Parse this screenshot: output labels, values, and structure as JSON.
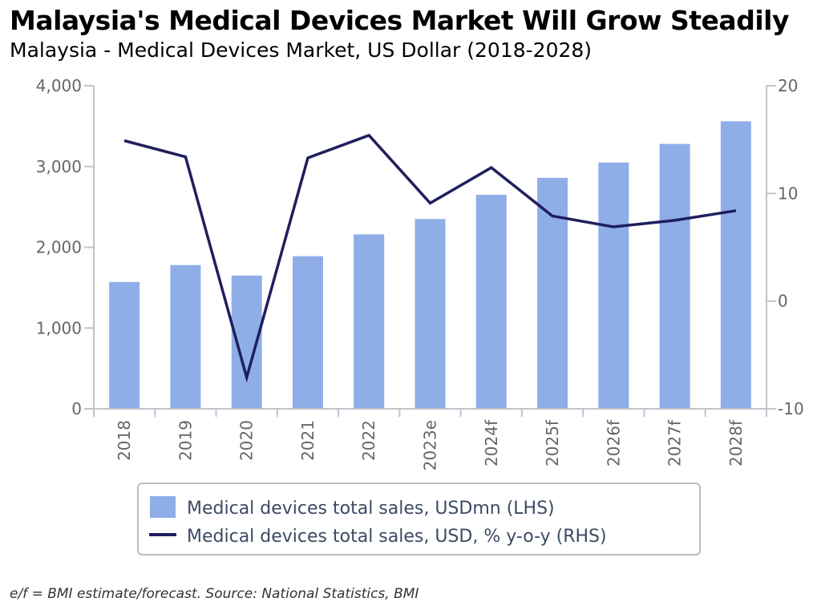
{
  "header": {
    "title": "Malaysia's Medical Devices Market Will Grow Steadily",
    "subtitle": "Malaysia - Medical Devices Market, US Dollar (2018-2028)"
  },
  "footnote": "e/f = BMI estimate/forecast. Source: National Statistics, BMI",
  "colors": {
    "bar": "#8faee8",
    "line": "#1f1f5e",
    "axis": "#c0c4cc",
    "tick_text": "#666666",
    "legend_text": "#3b4a63"
  },
  "chart_data": {
    "type": "bar",
    "title": "Malaysia's Medical Devices Market Will Grow Steadily",
    "subtitle": "Malaysia - Medical Devices Market, US Dollar (2018-2028)",
    "categories": [
      "2018",
      "2019",
      "2020",
      "2021",
      "2022",
      "2023e",
      "2024f",
      "2025f",
      "2026f",
      "2027f",
      "2028f"
    ],
    "series": [
      {
        "name": "Medical devices total sales, USDmn (LHS)",
        "type": "bar",
        "axis": "left",
        "values": [
          1570,
          1780,
          1650,
          1890,
          2160,
          2350,
          2650,
          2860,
          3050,
          3280,
          3560
        ]
      },
      {
        "name": "Medical devices total sales, USD, % y-o-y (RHS)",
        "type": "line",
        "axis": "right",
        "values": [
          14.9,
          13.4,
          -7.1,
          13.3,
          15.4,
          9.1,
          12.4,
          7.9,
          6.9,
          7.5,
          8.4
        ]
      }
    ],
    "y_left": {
      "min": 0,
      "max": 4000,
      "ticks": [
        0,
        1000,
        2000,
        3000,
        4000
      ],
      "tick_labels": [
        "0",
        "1,000",
        "2,000",
        "3,000",
        "4,000"
      ]
    },
    "y_right": {
      "min": -10,
      "max": 20,
      "ticks": [
        -10,
        0,
        10,
        20
      ],
      "tick_labels": [
        "-10",
        "0",
        "10",
        "20"
      ]
    },
    "xlabel": "",
    "ylabel": "",
    "grid": false,
    "legend_position": "bottom"
  }
}
